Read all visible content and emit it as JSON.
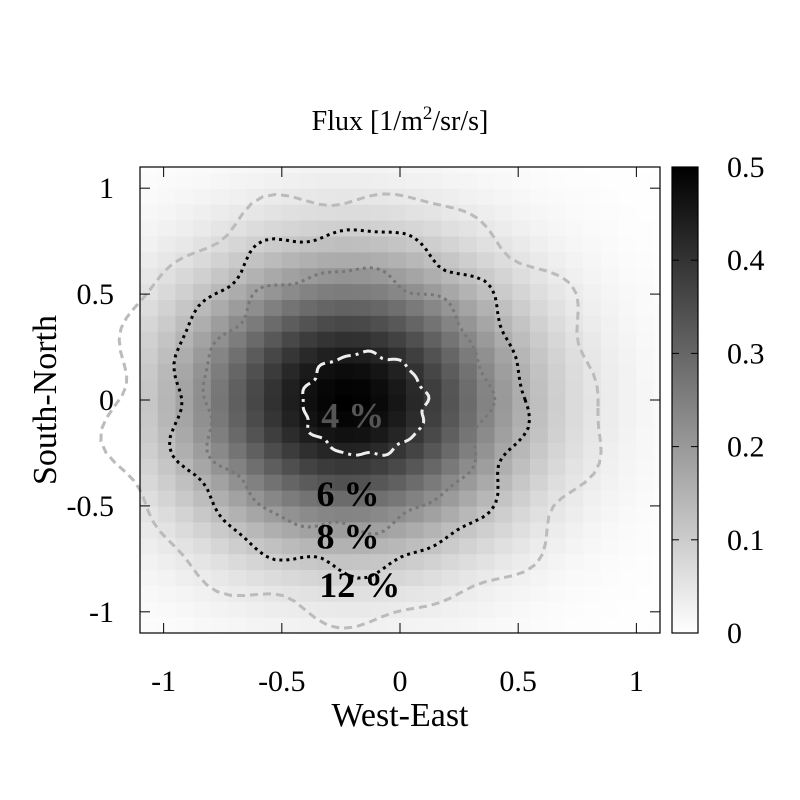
{
  "chart_data": {
    "type": "heatmap",
    "title_text": "Flux [1/m",
    "title_sup": "2",
    "title_tail": "/sr/s]",
    "xlabel": "West-East",
    "ylabel": "South-North",
    "xlim": [
      -1.1,
      1.1
    ],
    "ylim": [
      -1.1,
      1.1
    ],
    "xticks": [
      -1,
      -0.5,
      0,
      0.5,
      1
    ],
    "xtick_labels": [
      "-1",
      "-0.5",
      "0",
      "0.5",
      "1"
    ],
    "yticks": [
      -1,
      -0.5,
      0,
      0.5,
      1
    ],
    "ytick_labels": [
      "-1",
      "-0.5",
      "0",
      "0.5",
      "1"
    ],
    "colorbar": {
      "range": [
        0,
        0.5
      ],
      "ticks": [
        0,
        0.1,
        0.2,
        0.3,
        0.4,
        0.5
      ],
      "tick_labels": [
        "0",
        "0.1",
        "0.2",
        "0.3",
        "0.4",
        "0.5"
      ],
      "colormap": "grayscale-inverted"
    },
    "field": {
      "model": "gaussian",
      "peak": 0.5,
      "center": [
        -0.22,
        0.0
      ],
      "sigma_x": 0.36,
      "sigma_y": 0.33,
      "grid_step": 0.075
    },
    "contours": [
      {
        "label": "4 %",
        "style": "dash-dot",
        "color": "#eeeeee",
        "rx": 0.26,
        "ry": 0.24,
        "cx": -0.15,
        "cy": -0.02
      },
      {
        "label": "6 %",
        "style": "dotted",
        "color": "#777777",
        "rx": 0.6,
        "ry": 0.61,
        "cx": -0.23,
        "cy": 0.0
      },
      {
        "label": "8 %",
        "style": "dotted",
        "color": "#000000",
        "rx": 0.74,
        "ry": 0.8,
        "cx": -0.22,
        "cy": 0.0
      },
      {
        "label": "12 %",
        "style": "dashed",
        "color": "#bbbbbb",
        "rx": 1.03,
        "ry": 1.0,
        "cx": -0.19,
        "cy": -0.03
      }
    ],
    "contour_labels": [
      {
        "text": "4 %",
        "x": -0.2,
        "y": -0.13,
        "color": "#555555"
      },
      {
        "text": "6 %",
        "x": -0.22,
        "y": -0.5,
        "color": "#000000"
      },
      {
        "text": "8 %",
        "x": -0.22,
        "y": -0.7,
        "color": "#000000"
      },
      {
        "text": "12 %",
        "x": -0.17,
        "y": -0.93,
        "color": "#000000"
      }
    ]
  }
}
